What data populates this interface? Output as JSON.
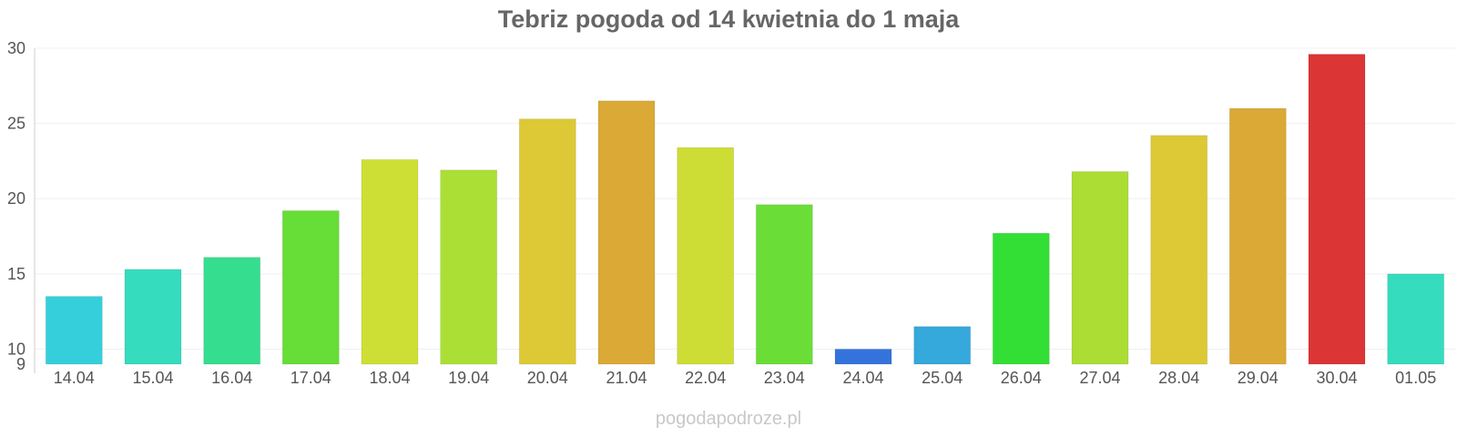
{
  "chart_data": {
    "type": "bar",
    "title": "Tebriz pogoda od 14 kwietnia do 1 maja",
    "xlabel": "",
    "ylabel": "",
    "ylim": [
      9,
      30
    ],
    "y_ticks": [
      "9",
      "10",
      "15",
      "20",
      "25",
      "30"
    ],
    "grid": true,
    "categories": [
      "14.04",
      "15.04",
      "16.04",
      "17.04",
      "18.04",
      "19.04",
      "20.04",
      "21.04",
      "22.04",
      "23.04",
      "24.04",
      "25.04",
      "26.04",
      "27.04",
      "28.04",
      "29.04",
      "30.04",
      "01.05"
    ],
    "values": [
      13.5,
      15.3,
      16.1,
      19.2,
      22.6,
      21.9,
      25.3,
      26.5,
      23.4,
      19.6,
      10.0,
      11.5,
      17.7,
      21.8,
      24.2,
      26.0,
      29.6,
      15.0
    ],
    "colors": [
      "#35cfdb",
      "#35dcbd",
      "#35dd8e",
      "#67dd37",
      "#cddf35",
      "#abdf35",
      "#dcc935",
      "#dba935",
      "#cddd35",
      "#6bdd37",
      "#3573dc",
      "#35a8dc",
      "#33df35",
      "#abdd35",
      "#dcc935",
      "#dba935",
      "#dc3535",
      "#35dcbd"
    ]
  },
  "watermark": "pogodapodroze.pl"
}
